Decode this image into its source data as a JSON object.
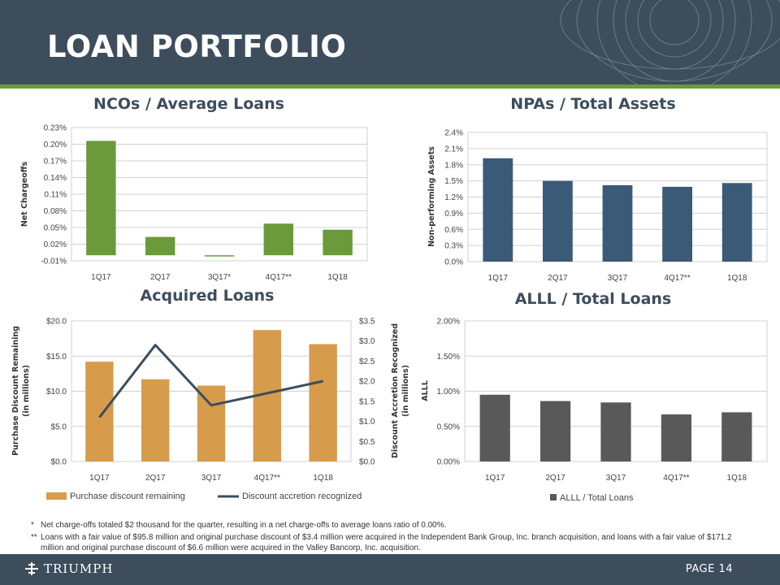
{
  "header": {
    "title": "LOAN PORTFOLIO"
  },
  "footer": {
    "logo_text": "TRIUMPH",
    "page_label": "PAGE 14"
  },
  "footnotes": [
    {
      "mark": "*",
      "text": "Net charge-offs totaled $2 thousand for the quarter, resulting in a net charge-offs to average loans ratio of 0.00%."
    },
    {
      "mark": "**",
      "text": "Loans with a fair value of $95.8 million and original purchase discount of $3.4 million were acquired in the Independent Bank Group, Inc. branch acquisition, and loans with a fair value of $171.2 million and original purchase discount of $6.6 million were acquired in the Valley Bancorp, Inc. acquisition."
    }
  ],
  "colors": {
    "green": "#6a9a3a",
    "blue": "#3a5a78",
    "orange": "#d69c4b",
    "gray": "#595959",
    "line": "#3d4d5c"
  },
  "chart_data": [
    {
      "id": "nco",
      "type": "bar",
      "title": "NCOs / Average Loans",
      "ylabel": "Net Chargeoffs",
      "categories": [
        "1Q17",
        "2Q17",
        "3Q17*",
        "4Q17**",
        "1Q18"
      ],
      "values": [
        0.206,
        0.033,
        0.0,
        0.057,
        0.046
      ],
      "ylim": [
        -0.01,
        0.23
      ],
      "yticks": [
        -0.01,
        0.02,
        0.05,
        0.08,
        0.11,
        0.14,
        0.17,
        0.2,
        0.23
      ],
      "ytick_labels": [
        "-0.01%",
        "0.02%",
        "0.05%",
        "0.08%",
        "0.11%",
        "0.14%",
        "0.17%",
        "0.20%",
        "0.23%"
      ],
      "grid": true
    },
    {
      "id": "npa",
      "type": "bar",
      "title": "NPAs / Total Assets",
      "ylabel": "Non-performing Assets",
      "categories": [
        "1Q17",
        "2Q17",
        "3Q17",
        "4Q17**",
        "1Q18"
      ],
      "values": [
        1.92,
        1.5,
        1.42,
        1.39,
        1.46
      ],
      "ylim": [
        0,
        2.4
      ],
      "yticks": [
        0,
        0.3,
        0.6,
        0.9,
        1.2,
        1.5,
        1.8,
        2.1,
        2.4
      ],
      "ytick_labels": [
        "0.0%",
        "0.3%",
        "0.6%",
        "0.9%",
        "1.2%",
        "1.5%",
        "1.8%",
        "2.1%",
        "2.4%"
      ],
      "grid": true
    },
    {
      "id": "acq",
      "type": "bar",
      "title": "Acquired Loans",
      "ylabel": "Purchase Discount Remaining",
      "ylabel_units": "(in millions)",
      "ylabel_right": "Discount Accretion Recognized",
      "ylabel_right_units": "(in millions)",
      "categories": [
        "1Q17",
        "2Q17",
        "3Q17",
        "4Q17**",
        "1Q18"
      ],
      "series": [
        {
          "name": "Purchase discount remaining",
          "type": "bar",
          "axis": "left",
          "values": [
            14.2,
            11.7,
            10.8,
            18.7,
            16.7
          ]
        },
        {
          "name": "Discount accretion recognized",
          "type": "line",
          "axis": "right",
          "values": [
            1.1,
            2.9,
            1.4,
            1.7,
            2.0
          ]
        }
      ],
      "ylim": [
        0,
        20
      ],
      "yticks": [
        0,
        5,
        10,
        15,
        20
      ],
      "ytick_labels": [
        "$0.0",
        "$5.0",
        "$10.0",
        "$15.0",
        "$20.0"
      ],
      "ylim_right": [
        0,
        3.5
      ],
      "yticks_right": [
        0,
        0.5,
        1.0,
        1.5,
        2.0,
        2.5,
        3.0,
        3.5
      ],
      "ytick_labels_right": [
        "$0.0",
        "$0.5",
        "$1.0",
        "$1.5",
        "$2.0",
        "$2.5",
        "$3.0",
        "$3.5"
      ],
      "grid": true,
      "legend": "bottom"
    },
    {
      "id": "alll",
      "type": "bar",
      "title": "ALLL / Total Loans",
      "ylabel": "ALLL",
      "categories": [
        "1Q17",
        "2Q17",
        "3Q17",
        "4Q17**",
        "1Q18"
      ],
      "series": [
        {
          "name": "ALLL / Total Loans",
          "values": [
            0.95,
            0.86,
            0.84,
            0.67,
            0.7
          ]
        }
      ],
      "ylim": [
        0,
        2.0
      ],
      "yticks": [
        0,
        0.5,
        1.0,
        1.5,
        2.0
      ],
      "ytick_labels": [
        "0.00%",
        "0.50%",
        "1.00%",
        "1.50%",
        "2.00%"
      ],
      "grid": true,
      "legend": "bottom"
    }
  ]
}
